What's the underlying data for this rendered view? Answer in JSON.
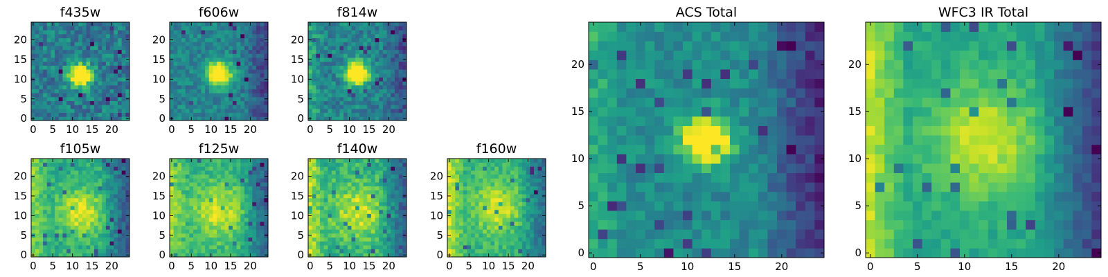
{
  "chart_data": [
    {
      "type": "heatmap",
      "title": "f435w",
      "x_ticks": [
        0,
        5,
        10,
        15,
        20
      ],
      "y_ticks": [
        0,
        5,
        10,
        15,
        20
      ],
      "xlim": [
        -0.5,
        24.5
      ],
      "ylim": [
        -0.5,
        24.5
      ],
      "grid_size": 25,
      "source_center": [
        12,
        11
      ],
      "source_sigma": 2.0,
      "source_peak": 0.9,
      "background": 0.42,
      "noise": 0.16,
      "edge_dark_right": 0.0,
      "edge_bright_left": 0.0,
      "colormap": "viridis"
    },
    {
      "type": "heatmap",
      "title": "f606w",
      "x_ticks": [
        0,
        5,
        10,
        15,
        20
      ],
      "y_ticks": [
        0,
        5,
        10,
        15,
        20
      ],
      "xlim": [
        -0.5,
        24.5
      ],
      "ylim": [
        -0.5,
        24.5
      ],
      "grid_size": 25,
      "source_center": [
        12,
        11.5
      ],
      "source_sigma": 2.2,
      "source_peak": 0.85,
      "background": 0.45,
      "noise": 0.12,
      "edge_dark_right": 0.25,
      "edge_bright_left": 0.0,
      "colormap": "viridis"
    },
    {
      "type": "heatmap",
      "title": "f814w",
      "x_ticks": [
        0,
        5,
        10,
        15,
        20
      ],
      "y_ticks": [
        0,
        5,
        10,
        15,
        20
      ],
      "xlim": [
        -0.5,
        24.5
      ],
      "ylim": [
        -0.5,
        24.5
      ],
      "grid_size": 25,
      "source_center": [
        12,
        11.5
      ],
      "source_sigma": 2.0,
      "source_peak": 0.9,
      "background": 0.45,
      "noise": 0.14,
      "edge_dark_right": 0.2,
      "edge_bright_left": 0.15,
      "colormap": "viridis"
    },
    {
      "type": "heatmap",
      "title": "f105w",
      "x_ticks": [
        0,
        5,
        10,
        15,
        20
      ],
      "y_ticks": [
        0,
        5,
        10,
        15,
        20
      ],
      "xlim": [
        -0.5,
        24.5
      ],
      "ylim": [
        -0.5,
        24.5
      ],
      "grid_size": 25,
      "source_center": [
        12,
        11
      ],
      "source_sigma": 4.0,
      "source_peak": 0.35,
      "background": 0.62,
      "noise": 0.1,
      "edge_dark_right": 0.35,
      "edge_bright_left": 0.2,
      "colormap": "viridis"
    },
    {
      "type": "heatmap",
      "title": "f125w",
      "x_ticks": [
        0,
        5,
        10,
        15,
        20
      ],
      "y_ticks": [
        0,
        5,
        10,
        15,
        20
      ],
      "xlim": [
        -0.5,
        24.5
      ],
      "ylim": [
        -0.5,
        24.5
      ],
      "grid_size": 25,
      "source_center": [
        12,
        11
      ],
      "source_sigma": 4.5,
      "source_peak": 0.3,
      "background": 0.65,
      "noise": 0.1,
      "edge_dark_right": 0.35,
      "edge_bright_left": 0.2,
      "colormap": "viridis"
    },
    {
      "type": "heatmap",
      "title": "f140w",
      "x_ticks": [
        0,
        5,
        10,
        15,
        20
      ],
      "y_ticks": [
        0,
        5,
        10,
        15,
        20
      ],
      "xlim": [
        -0.5,
        24.5
      ],
      "ylim": [
        -0.5,
        24.5
      ],
      "grid_size": 25,
      "source_center": [
        12,
        11
      ],
      "source_sigma": 4.5,
      "source_peak": 0.3,
      "background": 0.64,
      "noise": 0.12,
      "edge_dark_right": 0.35,
      "edge_bright_left": 0.25,
      "colormap": "viridis"
    },
    {
      "type": "heatmap",
      "title": "f160w",
      "x_ticks": [
        0,
        5,
        10,
        15,
        20
      ],
      "y_ticks": [
        0,
        5,
        10,
        15,
        20
      ],
      "xlim": [
        -0.5,
        24.5
      ],
      "ylim": [
        -0.5,
        24.5
      ],
      "grid_size": 25,
      "source_center": [
        12,
        12
      ],
      "source_sigma": 4.0,
      "source_peak": 0.3,
      "background": 0.66,
      "noise": 0.1,
      "edge_dark_right": 0.3,
      "edge_bright_left": 0.25,
      "colormap": "viridis"
    },
    {
      "type": "heatmap",
      "title": "ACS Total",
      "x_ticks": [
        0,
        5,
        10,
        15,
        20
      ],
      "y_ticks": [
        0,
        5,
        10,
        15,
        20
      ],
      "xlim": [
        -0.5,
        24.5
      ],
      "ylim": [
        -0.5,
        24.5
      ],
      "grid_size": 25,
      "source_center": [
        12,
        12
      ],
      "source_sigma": 1.8,
      "source_peak": 0.8,
      "background": 0.48,
      "noise": 0.1,
      "edge_dark_right": 0.35,
      "edge_bright_left": 0.15,
      "colormap": "viridis"
    },
    {
      "type": "heatmap",
      "title": "WFC3 IR Total",
      "x_ticks": [
        0,
        5,
        10,
        15,
        20
      ],
      "y_ticks": [
        0,
        5,
        10,
        15,
        20
      ],
      "xlim": [
        -0.5,
        24.5
      ],
      "ylim": [
        -0.5,
        24.5
      ],
      "grid_size": 25,
      "source_center": [
        12,
        12
      ],
      "source_sigma": 4.0,
      "source_peak": 0.35,
      "background": 0.6,
      "noise": 0.07,
      "edge_dark_right": 0.4,
      "edge_bright_left": 0.3,
      "colormap": "viridis"
    }
  ]
}
